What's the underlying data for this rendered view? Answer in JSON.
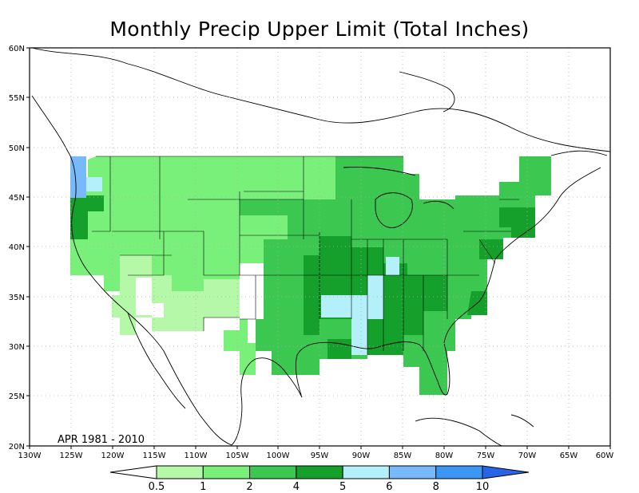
{
  "title": "Monthly Precip Upper Limit (Total Inches)",
  "period_label": "APR 1981 - 2010",
  "lat_ticks": [
    "60N",
    "55N",
    "50N",
    "45N",
    "40N",
    "35N",
    "30N",
    "25N",
    "20N"
  ],
  "lon_ticks": [
    "130W",
    "125W",
    "120W",
    "115W",
    "110W",
    "105W",
    "100W",
    "95W",
    "90W",
    "85W",
    "80W",
    "75W",
    "70W",
    "65W",
    "60W"
  ],
  "colorbar": {
    "levels": [
      "0.5",
      "1",
      "2",
      "4",
      "5",
      "6",
      "8",
      "10"
    ],
    "colors": [
      "#ffffff",
      "#b4f8a8",
      "#78f07a",
      "#3cc850",
      "#14a02a",
      "#b4f0fa",
      "#78b9fa",
      "#3c96f5",
      "#2a64e6"
    ]
  },
  "colors": {
    "water": "#ffffff",
    "coast": "#000000",
    "grid": "#b0b0b0"
  }
}
